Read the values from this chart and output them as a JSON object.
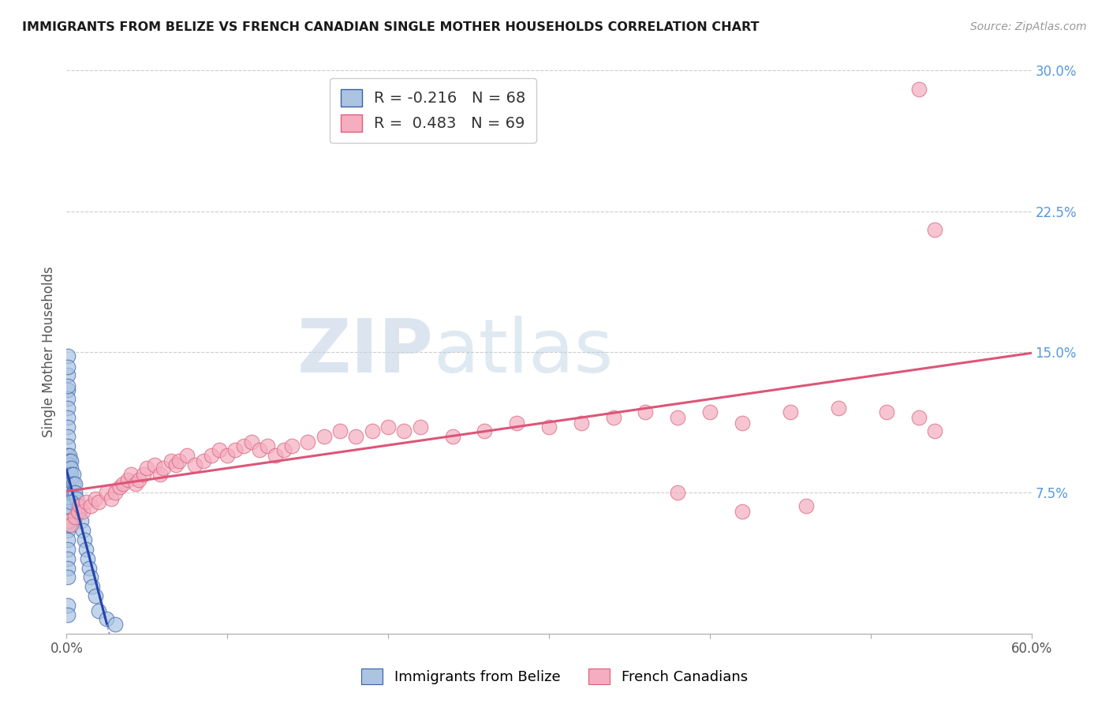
{
  "title": "IMMIGRANTS FROM BELIZE VS FRENCH CANADIAN SINGLE MOTHER HOUSEHOLDS CORRELATION CHART",
  "source": "Source: ZipAtlas.com",
  "ylabel": "Single Mother Households",
  "xlim": [
    0.0,
    0.6
  ],
  "ylim": [
    0.0,
    0.3
  ],
  "xticks": [
    0.0,
    0.1,
    0.2,
    0.3,
    0.4,
    0.5,
    0.6
  ],
  "xtick_labels": [
    "0.0%",
    "",
    "",
    "",
    "",
    "",
    "60.0%"
  ],
  "yticks": [
    0.0,
    0.075,
    0.15,
    0.225,
    0.3
  ],
  "ytick_labels_right": [
    "",
    "7.5%",
    "15.0%",
    "22.5%",
    "30.0%"
  ],
  "belize_R": -0.216,
  "belize_N": 68,
  "french_R": 0.483,
  "french_N": 69,
  "belize_color": "#aac4e2",
  "french_color": "#f5adc0",
  "belize_edge_color": "#3a5fa8",
  "french_edge_color": "#d9607a",
  "belize_line_color": "#2244aa",
  "french_line_color": "#dd5577",
  "tick_color": "#5599dd",
  "legend_belize_label": "Immigrants from Belize",
  "legend_french_label": "French Canadians",
  "watermark_zip": "ZIP",
  "watermark_atlas": "atlas",
  "grid_color": "#cccccc",
  "belize_x": [
    0.001,
    0.001,
    0.001,
    0.001,
    0.001,
    0.001,
    0.001,
    0.001,
    0.001,
    0.001,
    0.001,
    0.001,
    0.001,
    0.001,
    0.001,
    0.001,
    0.001,
    0.001,
    0.001,
    0.001,
    0.002,
    0.002,
    0.002,
    0.002,
    0.002,
    0.002,
    0.002,
    0.002,
    0.003,
    0.003,
    0.003,
    0.003,
    0.003,
    0.004,
    0.004,
    0.004,
    0.005,
    0.005,
    0.006,
    0.007,
    0.008,
    0.009,
    0.01,
    0.011,
    0.012,
    0.013,
    0.014,
    0.015,
    0.016,
    0.018,
    0.001,
    0.001,
    0.001,
    0.001,
    0.001,
    0.001,
    0.002,
    0.003,
    0.02,
    0.025,
    0.03,
    0.001,
    0.001,
    0.001,
    0.001,
    0.002,
    0.001,
    0.001
  ],
  "belize_y": [
    0.13,
    0.125,
    0.12,
    0.115,
    0.11,
    0.105,
    0.1,
    0.095,
    0.09,
    0.088,
    0.085,
    0.082,
    0.08,
    0.078,
    0.075,
    0.073,
    0.07,
    0.068,
    0.065,
    0.06,
    0.095,
    0.092,
    0.09,
    0.088,
    0.085,
    0.082,
    0.078,
    0.075,
    0.092,
    0.088,
    0.085,
    0.08,
    0.075,
    0.085,
    0.08,
    0.075,
    0.08,
    0.075,
    0.072,
    0.068,
    0.065,
    0.06,
    0.055,
    0.05,
    0.045,
    0.04,
    0.035,
    0.03,
    0.025,
    0.02,
    0.055,
    0.05,
    0.045,
    0.04,
    0.035,
    0.03,
    0.06,
    0.07,
    0.012,
    0.008,
    0.005,
    0.138,
    0.132,
    0.015,
    0.01,
    0.058,
    0.148,
    0.142
  ],
  "french_x": [
    0.001,
    0.003,
    0.005,
    0.007,
    0.008,
    0.01,
    0.012,
    0.015,
    0.018,
    0.02,
    0.025,
    0.028,
    0.03,
    0.033,
    0.035,
    0.038,
    0.04,
    0.043,
    0.045,
    0.048,
    0.05,
    0.055,
    0.058,
    0.06,
    0.065,
    0.068,
    0.07,
    0.075,
    0.08,
    0.085,
    0.09,
    0.095,
    0.1,
    0.105,
    0.11,
    0.115,
    0.12,
    0.125,
    0.13,
    0.135,
    0.14,
    0.15,
    0.16,
    0.17,
    0.18,
    0.19,
    0.2,
    0.21,
    0.22,
    0.24,
    0.26,
    0.28,
    0.3,
    0.32,
    0.34,
    0.36,
    0.38,
    0.4,
    0.42,
    0.45,
    0.48,
    0.51,
    0.53,
    0.54,
    0.38,
    0.42,
    0.46,
    0.53,
    0.54
  ],
  "french_y": [
    0.06,
    0.058,
    0.062,
    0.065,
    0.068,
    0.065,
    0.07,
    0.068,
    0.072,
    0.07,
    0.075,
    0.072,
    0.075,
    0.078,
    0.08,
    0.082,
    0.085,
    0.08,
    0.082,
    0.085,
    0.088,
    0.09,
    0.085,
    0.088,
    0.092,
    0.09,
    0.092,
    0.095,
    0.09,
    0.092,
    0.095,
    0.098,
    0.095,
    0.098,
    0.1,
    0.102,
    0.098,
    0.1,
    0.095,
    0.098,
    0.1,
    0.102,
    0.105,
    0.108,
    0.105,
    0.108,
    0.11,
    0.108,
    0.11,
    0.105,
    0.108,
    0.112,
    0.11,
    0.112,
    0.115,
    0.118,
    0.115,
    0.118,
    0.112,
    0.118,
    0.12,
    0.118,
    0.115,
    0.108,
    0.075,
    0.065,
    0.068,
    0.29,
    0.215
  ]
}
